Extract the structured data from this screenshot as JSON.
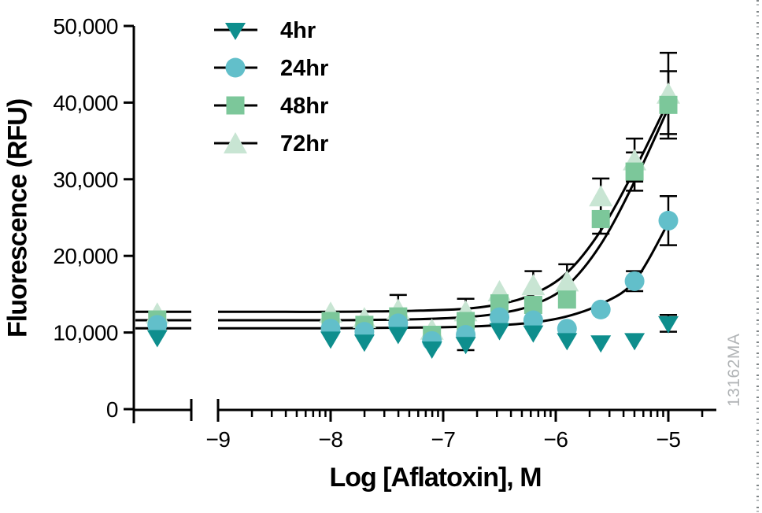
{
  "figure": {
    "y_axis_title": "Fluorescence (RFU)",
    "x_axis_title": "Log [Aflatoxin], M",
    "watermark": "13162MA",
    "watermark_color": "#b2b5b7",
    "background_color": "#ffffff",
    "axis_color": "#000000"
  },
  "chart_data": {
    "type": "scatter",
    "title": "",
    "xlabel": "Log [Aflatoxin], M",
    "ylabel": "Fluorescence (RFU)",
    "x_scale": "log10 of molar aflatoxin concentration; broken x-axis with an off-scale control cluster left of the break",
    "xlim": [
      -9,
      -4.57
    ],
    "ylim": [
      0,
      50000
    ],
    "grid": false,
    "legend_position": "inside top-left",
    "y_ticks": [
      {
        "value": 0,
        "label": "0"
      },
      {
        "value": 10000,
        "label": "10,000"
      },
      {
        "value": 20000,
        "label": "20,000"
      },
      {
        "value": 30000,
        "label": "30,000"
      },
      {
        "value": 40000,
        "label": "40,000"
      },
      {
        "value": 50000,
        "label": "50,000"
      }
    ],
    "x_ticks": [
      {
        "value": -9,
        "label": "−9"
      },
      {
        "value": -8,
        "label": "−8"
      },
      {
        "value": -7,
        "label": "−7"
      },
      {
        "value": -6,
        "label": "−6"
      },
      {
        "value": -5,
        "label": "−5"
      }
    ],
    "log_x": [
      -8.0,
      -7.7,
      -7.4,
      -7.1,
      -6.8,
      -6.5,
      -6.2,
      -5.9,
      -5.6,
      -5.3,
      -5.0
    ],
    "control_log_x": -9.54,
    "series": [
      {
        "name": "4hr",
        "marker": "triangle-down",
        "color": "#0e8e8d",
        "has_fit_curve": false,
        "control_value": 9400,
        "values": [
          9200,
          8800,
          9800,
          7900,
          8500,
          10300,
          10000,
          9000,
          8700,
          9000,
          11200
        ],
        "errors": [
          0,
          0,
          0,
          0,
          0,
          0,
          0,
          0,
          0,
          0,
          1100
        ]
      },
      {
        "name": "24hr",
        "marker": "circle",
        "color": "#62bfca",
        "has_fit_curve": true,
        "control_value": 11000,
        "values": [
          10500,
          10100,
          11200,
          8900,
          9700,
          12000,
          11600,
          10500,
          13000,
          16700,
          24600
        ],
        "errors": [
          0,
          0,
          0,
          0,
          2000,
          0,
          0,
          0,
          0,
          1300,
          3200
        ]
      },
      {
        "name": "48hr",
        "marker": "square",
        "color": "#7cc79a",
        "has_fit_curve": true,
        "control_value": 11700,
        "values": [
          11500,
          11000,
          12100,
          9700,
          11500,
          13800,
          13600,
          14300,
          24800,
          31000,
          39700
        ],
        "errors": [
          0,
          0,
          0,
          0,
          0,
          0,
          0,
          0,
          1900,
          2500,
          4400
        ]
      },
      {
        "name": "72hr",
        "marker": "triangle-up",
        "color": "#c8e5d3",
        "has_fit_curve": true,
        "control_value": 12500,
        "values": [
          12600,
          11900,
          13000,
          10400,
          12800,
          15400,
          16200,
          16700,
          27800,
          32500,
          41200
        ],
        "errors": [
          0,
          0,
          1900,
          0,
          1600,
          0,
          1800,
          2200,
          2300,
          2800,
          5300
        ]
      }
    ],
    "fit_curves": [
      {
        "series": "24hr",
        "baseline": 10550,
        "points": [
          [
            -9,
            10550
          ],
          [
            -8.4,
            10550
          ],
          [
            -8,
            10550
          ],
          [
            -7.6,
            10600
          ],
          [
            -7.2,
            10650
          ],
          [
            -6.8,
            10750
          ],
          [
            -6.5,
            10950
          ],
          [
            -6.2,
            11300
          ],
          [
            -5.9,
            12100
          ],
          [
            -5.6,
            13700
          ],
          [
            -5.3,
            16700
          ],
          [
            -5,
            24300
          ]
        ]
      },
      {
        "series": "48hr",
        "baseline": 11600,
        "points": [
          [
            -9,
            11600
          ],
          [
            -8.4,
            11600
          ],
          [
            -8,
            11600
          ],
          [
            -7.6,
            11650
          ],
          [
            -7.2,
            11750
          ],
          [
            -6.8,
            12000
          ],
          [
            -6.5,
            12500
          ],
          [
            -6.2,
            13600
          ],
          [
            -5.9,
            16100
          ],
          [
            -5.6,
            21500
          ],
          [
            -5.3,
            29700
          ],
          [
            -5,
            39300
          ]
        ]
      },
      {
        "series": "72hr",
        "baseline": 12700,
        "points": [
          [
            -9,
            12700
          ],
          [
            -8.4,
            12700
          ],
          [
            -8,
            12700
          ],
          [
            -7.6,
            12750
          ],
          [
            -7.2,
            12850
          ],
          [
            -6.8,
            13100
          ],
          [
            -6.5,
            13700
          ],
          [
            -6.2,
            15000
          ],
          [
            -5.9,
            17800
          ],
          [
            -5.6,
            23300
          ],
          [
            -5.3,
            31200
          ],
          [
            -5,
            40200
          ]
        ]
      }
    ],
    "legend": {
      "items": [
        "4hr",
        "24hr",
        "48hr",
        "72hr"
      ]
    }
  }
}
